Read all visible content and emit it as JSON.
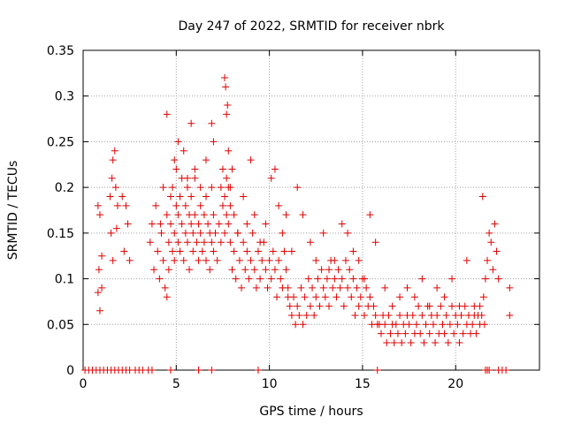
{
  "chart_data": {
    "type": "scatter",
    "title": "Day 247 of 2022, SRMTID for receiver nbrk",
    "xlabel": "GPS time / hours",
    "ylabel": "SRMTID / TECUs",
    "xlim": [
      0,
      24.5
    ],
    "ylim": [
      0,
      0.35
    ],
    "xticks": [
      0,
      5,
      10,
      15,
      20
    ],
    "xtick_labels": [
      "0",
      "5",
      "10",
      "15",
      "20"
    ],
    "yticks": [
      0,
      0.05,
      0.1,
      0.15,
      0.2,
      0.25,
      0.3,
      0.35
    ],
    "ytick_labels": [
      "0",
      "0.05",
      "0.1",
      "0.15",
      "0.2",
      "0.25",
      "0.3",
      "0.35"
    ],
    "grid": true,
    "marker": "+",
    "color": "#e00000",
    "series": [
      {
        "name": "SRMTID",
        "x": [
          0.1,
          0.3,
          0.5,
          0.7,
          0.9,
          1.1,
          1.3,
          1.5,
          1.7,
          1.9,
          2.1,
          2.3,
          2.5,
          2.8,
          3.0,
          3.2,
          3.5,
          3.7,
          4.7,
          6.2,
          6.9,
          9.4,
          15.8,
          21.6,
          21.7,
          21.8,
          22.3,
          22.5,
          22.7,
          0.8,
          0.8,
          0.9,
          0.9,
          0.85,
          1.0,
          1.0,
          1.45,
          1.5,
          1.55,
          1.6,
          1.6,
          1.7,
          1.75,
          1.8,
          1.85,
          2.1,
          2.2,
          2.3,
          2.4,
          2.5,
          3.6,
          3.7,
          3.8,
          3.9,
          4.0,
          4.1,
          4.2,
          4.3,
          4.4,
          4.5,
          4.5,
          4.6,
          4.6,
          4.7,
          4.7,
          4.8,
          4.8,
          4.9,
          4.9,
          5.0,
          5.0,
          5.1,
          5.1,
          5.2,
          5.2,
          5.3,
          5.3,
          5.4,
          5.5,
          5.5,
          5.6,
          5.6,
          5.7,
          5.7,
          5.8,
          5.8,
          5.9,
          5.9,
          6.0,
          6.0,
          6.1,
          6.2,
          6.2,
          6.3,
          6.3,
          6.4,
          6.5,
          6.5,
          6.6,
          6.6,
          6.7,
          6.8,
          6.8,
          6.9,
          6.9,
          7.0,
          7.0,
          7.1,
          7.2,
          7.3,
          7.4,
          7.5,
          7.5,
          7.6,
          7.6,
          7.7,
          7.7,
          7.8,
          7.8,
          7.9,
          4.15,
          4.3,
          4.5,
          4.9,
          5.1,
          5.4,
          5.6,
          5.8,
          6.0,
          6.3,
          6.6,
          6.9,
          7.0,
          7.4,
          7.6,
          7.65,
          7.7,
          7.75,
          7.8,
          7.9,
          8.0,
          7.9,
          8.0,
          8.1,
          8.2,
          8.3,
          8.4,
          8.5,
          8.6,
          8.7,
          8.8,
          8.9,
          9.0,
          9.1,
          9.2,
          9.3,
          9.4,
          9.5,
          9.6,
          9.7,
          9.8,
          9.9,
          10.0,
          10.1,
          10.2,
          10.3,
          10.4,
          10.5,
          10.6,
          10.7,
          10.8,
          10.9,
          11.0,
          8.1,
          8.3,
          8.6,
          8.8,
          9.0,
          9.2,
          9.5,
          9.8,
          10.1,
          10.3,
          10.5,
          10.7,
          10.9,
          11.0,
          11.1,
          11.2,
          11.3,
          11.4,
          11.5,
          11.6,
          11.7,
          11.8,
          11.9,
          12.0,
          12.1,
          12.2,
          12.3,
          12.4,
          12.5,
          12.6,
          12.7,
          12.8,
          12.9,
          13.0,
          13.1,
          13.2,
          13.3,
          13.4,
          13.5,
          13.6,
          13.7,
          13.8,
          13.9,
          14.0,
          14.1,
          14.2,
          14.3,
          14.4,
          14.5,
          14.6,
          14.7,
          14.8,
          14.9,
          15.0,
          15.1,
          15.2,
          15.3,
          15.4,
          15.5,
          15.6,
          15.7,
          15.8,
          11.2,
          11.5,
          11.8,
          12.2,
          12.5,
          12.9,
          13.2,
          13.5,
          13.9,
          14.2,
          14.5,
          14.8,
          15.1,
          15.4,
          15.7,
          15.9,
          16.0,
          16.1,
          16.2,
          16.3,
          16.4,
          16.5,
          16.6,
          16.7,
          16.8,
          16.9,
          17.0,
          17.1,
          17.2,
          17.3,
          17.4,
          17.5,
          17.6,
          17.7,
          17.8,
          17.9,
          18.0,
          18.1,
          18.2,
          18.3,
          18.4,
          18.5,
          18.6,
          18.7,
          18.8,
          18.9,
          19.0,
          19.1,
          19.2,
          19.3,
          19.4,
          19.5,
          19.6,
          19.7,
          19.8,
          19.9,
          20.0,
          20.1,
          20.2,
          20.3,
          20.4,
          20.5,
          20.6,
          20.7,
          20.8,
          20.9,
          21.0,
          21.1,
          21.2,
          21.3,
          16.2,
          16.6,
          17.0,
          17.4,
          17.8,
          18.2,
          18.6,
          19.0,
          19.4,
          19.8,
          20.2,
          20.6,
          21.0,
          21.3,
          21.4,
          21.45,
          21.5,
          21.55,
          21.6,
          21.7,
          21.8,
          21.9,
          22.0,
          22.1,
          22.2,
          22.3,
          22.9,
          22.9
        ],
        "y": [
          0,
          0,
          0,
          0,
          0,
          0,
          0,
          0,
          0,
          0,
          0,
          0,
          0,
          0,
          0,
          0,
          0,
          0,
          0,
          0,
          0,
          0,
          0,
          0,
          0,
          0,
          0,
          0,
          0,
          0.18,
          0.085,
          0.17,
          0.065,
          0.11,
          0.125,
          0.09,
          0.19,
          0.15,
          0.21,
          0.23,
          0.12,
          0.24,
          0.2,
          0.155,
          0.18,
          0.19,
          0.13,
          0.18,
          0.16,
          0.12,
          0.14,
          0.16,
          0.11,
          0.18,
          0.13,
          0.1,
          0.15,
          0.12,
          0.09,
          0.17,
          0.08,
          0.14,
          0.11,
          0.19,
          0.16,
          0.13,
          0.2,
          0.15,
          0.12,
          0.18,
          0.22,
          0.14,
          0.17,
          0.19,
          0.13,
          0.16,
          0.21,
          0.12,
          0.15,
          0.18,
          0.14,
          0.2,
          0.17,
          0.11,
          0.16,
          0.19,
          0.13,
          0.15,
          0.17,
          0.21,
          0.14,
          0.16,
          0.12,
          0.18,
          0.15,
          0.13,
          0.17,
          0.14,
          0.19,
          0.12,
          0.16,
          0.15,
          0.11,
          0.2,
          0.14,
          0.17,
          0.13,
          0.15,
          0.12,
          0.16,
          0.14,
          0.18,
          0.22,
          0.19,
          0.15,
          0.21,
          0.17,
          0.2,
          0.16,
          0.18,
          0.16,
          0.2,
          0.28,
          0.23,
          0.25,
          0.24,
          0.21,
          0.27,
          0.22,
          0.2,
          0.23,
          0.27,
          0.25,
          0.2,
          0.32,
          0.31,
          0.28,
          0.29,
          0.24,
          0.2,
          0.22,
          0.14,
          0.11,
          0.13,
          0.1,
          0.15,
          0.12,
          0.09,
          0.14,
          0.11,
          0.13,
          0.1,
          0.12,
          0.15,
          0.11,
          0.09,
          0.13,
          0.1,
          0.12,
          0.14,
          0.11,
          0.09,
          0.12,
          0.1,
          0.13,
          0.11,
          0.08,
          0.12,
          0.1,
          0.09,
          0.13,
          0.11,
          0.08,
          0.17,
          0.15,
          0.19,
          0.16,
          0.23,
          0.17,
          0.14,
          0.16,
          0.21,
          0.22,
          0.18,
          0.15,
          0.17,
          0.09,
          0.07,
          0.06,
          0.08,
          0.05,
          0.07,
          0.06,
          0.09,
          0.05,
          0.08,
          0.06,
          0.1,
          0.07,
          0.09,
          0.06,
          0.08,
          0.1,
          0.07,
          0.11,
          0.09,
          0.08,
          0.1,
          0.07,
          0.12,
          0.09,
          0.1,
          0.08,
          0.11,
          0.09,
          0.1,
          0.07,
          0.12,
          0.09,
          0.11,
          0.08,
          0.1,
          0.06,
          0.09,
          0.07,
          0.08,
          0.1,
          0.06,
          0.09,
          0.07,
          0.08,
          0.05,
          0.07,
          0.06,
          0.05,
          0.13,
          0.2,
          0.17,
          0.14,
          0.12,
          0.15,
          0.11,
          0.12,
          0.16,
          0.15,
          0.13,
          0.12,
          0.1,
          0.17,
          0.14,
          0.05,
          0.04,
          0.06,
          0.05,
          0.03,
          0.06,
          0.04,
          0.05,
          0.03,
          0.05,
          0.04,
          0.06,
          0.03,
          0.05,
          0.04,
          0.06,
          0.05,
          0.03,
          0.06,
          0.04,
          0.05,
          0.07,
          0.04,
          0.06,
          0.03,
          0.05,
          0.07,
          0.04,
          0.06,
          0.05,
          0.03,
          0.06,
          0.04,
          0.07,
          0.05,
          0.04,
          0.06,
          0.03,
          0.05,
          0.07,
          0.04,
          0.06,
          0.05,
          0.03,
          0.06,
          0.04,
          0.07,
          0.05,
          0.06,
          0.04,
          0.05,
          0.07,
          0.04,
          0.06,
          0.05,
          0.09,
          0.07,
          0.08,
          0.09,
          0.08,
          0.1,
          0.07,
          0.09,
          0.08,
          0.1,
          0.07,
          0.12,
          0.06,
          0.07,
          0.06,
          0.19,
          0.08,
          0.05,
          0.1,
          0.12,
          0.15,
          0.14,
          0.11,
          0.16,
          0.13,
          0.1,
          0.09,
          0.06
        ]
      }
    ]
  }
}
